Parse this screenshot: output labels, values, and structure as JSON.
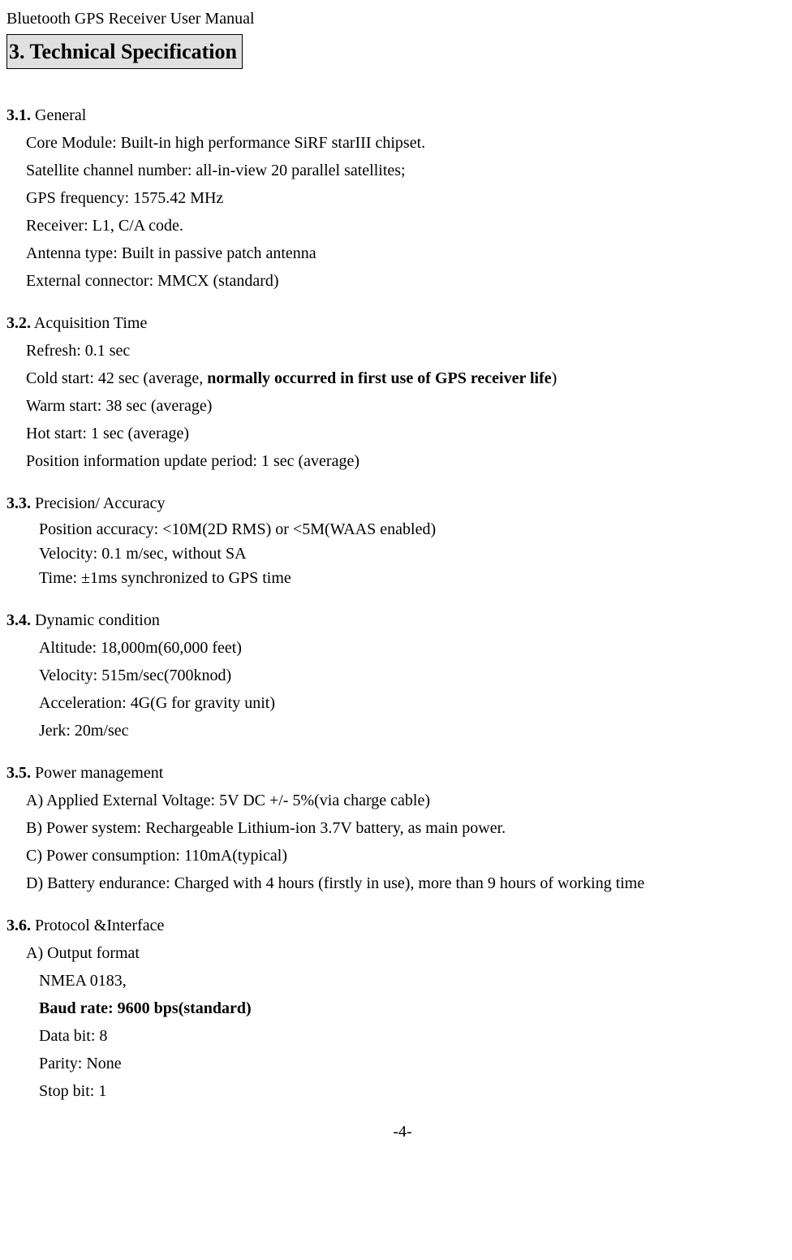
{
  "header": "Bluetooth GPS Receiver User Manual",
  "section_title": "3. Technical Specification",
  "s31": {
    "num": "3.1.",
    "title": " General",
    "lines": [
      "Core Module: Built-in high performance SiRF starIII chipset.",
      "Satellite channel number: all-in-view 20 parallel satellites;",
      "GPS frequency: 1575.42 MHz",
      "Receiver: L1, C/A code.",
      "Antenna type: Built in passive patch antenna",
      "External connector: MMCX (standard)"
    ]
  },
  "s32": {
    "num": "3.2.",
    "title": " Acquisition Time",
    "refresh": "Refresh: 0.1 sec",
    "cold_pre": "Cold start: 42 sec (average, ",
    "cold_bold": "normally occurred in first use of GPS receiver life",
    "cold_post": ")",
    "warm": "Warm start: 38 sec (average)",
    "hot": "Hot start: 1 sec (average)",
    "update": "Position information update period: 1 sec (average)"
  },
  "s33": {
    "num": "3.3.",
    "title": " Precision/ Accuracy",
    "lines": [
      "Position accuracy: <10M(2D RMS) or <5M(WAAS enabled)",
      "Velocity: 0.1 m/sec, without SA",
      "Time:  ±1ms synchronized to GPS time"
    ]
  },
  "s34": {
    "num": "3.4.",
    "title": " Dynamic condition",
    "lines": [
      "Altitude: 18,000m(60,000 feet)",
      "Velocity: 515m/sec(700knod)",
      "Acceleration: 4G(G for gravity unit)",
      "Jerk: 20m/sec"
    ]
  },
  "s35": {
    "num": "3.5.",
    "title": " Power management",
    "lines": [
      "A) Applied External Voltage: 5V DC +/- 5%(via charge cable)",
      "B) Power system: Rechargeable Lithium-ion 3.7V battery, as main power.",
      "C) Power consumption: 110mA(typical)",
      "D) Battery endurance: Charged with 4 hours (firstly in use), more than 9 hours of working time"
    ]
  },
  "s36": {
    "num": "3.6.",
    "title": " Protocol &Interface",
    "output_format": "A) Output format",
    "nmea": "NMEA 0183,",
    "baud": "Baud rate: 9600 bps(standard)",
    "databit": "Data bit: 8",
    "parity": "Parity: None",
    "stopbit": "Stop bit: 1"
  },
  "page_num": "-4-"
}
